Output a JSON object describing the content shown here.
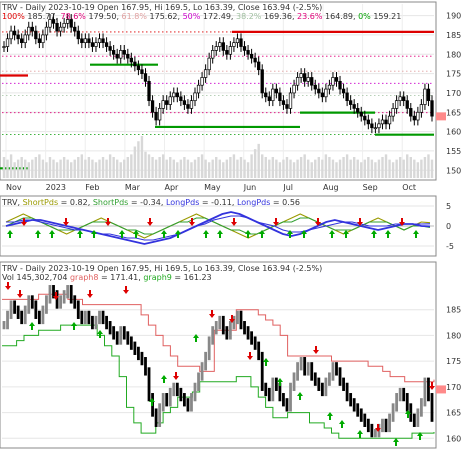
{
  "colors": {
    "up": "#000000",
    "down": "#000000",
    "fib_red": "#e0007a",
    "fib_green": "#00a000",
    "fib_level_line_red": "#dd0000",
    "fib_level_line_green": "#009900",
    "short_pds": "#9a9a00",
    "long_pds": "#3333dd",
    "short_pds2": "#33a033",
    "graph8": "#e06060",
    "graph9": "#22aa22",
    "arrow_up": "#00aa00",
    "arrow_down": "#dd0000",
    "pill": "#ff8a8a"
  },
  "header": {
    "ticker": "TRV",
    "line1": "TRV - Daily 2023-10-19 Open 167.95, Hi 169.5, Lo 163.39, Close 163.94 (-2.5%)",
    "fib_items": [
      {
        "pct": "100%",
        "val": "185.77",
        "color": "#e00000"
      },
      {
        "pct": "78.6%",
        "val": "179.50",
        "color": "#e0007a"
      },
      {
        "pct": "61.8%",
        "val": "175.62",
        "color": "#e0a0a0"
      },
      {
        "pct": "50%",
        "val": "172.49",
        "color": "#cc00cc"
      },
      {
        "pct": "38.2%",
        "val": "169.36",
        "color": "#a0c0a0"
      },
      {
        "pct": "23.6%",
        "val": "164.89",
        "color": "#e0007a"
      },
      {
        "pct": "0%",
        "val": "159.21",
        "color": "#00a000"
      }
    ]
  },
  "indicator": {
    "parts": [
      {
        "text": "TRV, ",
        "color": "#333333"
      },
      {
        "text": "ShortPds",
        "color": "#9a9a00"
      },
      {
        "text": " = 0.82, ",
        "color": "#333333"
      },
      {
        "text": "ShortPds",
        "color": "#33a033"
      },
      {
        "text": " = -0.34, ",
        "color": "#333333"
      },
      {
        "text": "LongPds",
        "color": "#3333dd"
      },
      {
        "text": " = -0.11, ",
        "color": "#333333"
      },
      {
        "text": "LongPds",
        "color": "#3333dd"
      },
      {
        "text": " = 0.56",
        "color": "#333333"
      }
    ]
  },
  "lower": {
    "line1": "TRV - Daily 2023-10-19 Open 167.95, Hi 169.5, Lo 163.39, Close 163.94 (-2.5%)",
    "vol_parts": [
      {
        "text": "Vol 145,302,704 ",
        "color": "#333333"
      },
      {
        "text": "graph8",
        "color": "#e06060"
      },
      {
        "text": " = 171.41, ",
        "color": "#333333"
      },
      {
        "text": "graph9",
        "color": "#22aa22"
      },
      {
        "text": " = 161.23",
        "color": "#333333"
      }
    ]
  },
  "chart_data": [
    {
      "type": "bar",
      "title": "TRV - Daily 2023-10-19 Open 167.95, Hi 169.5, Lo 163.39, Close 163.94 (-2.5%)",
      "x_labels": [
        "Nov",
        "2023",
        "Feb",
        "Mar",
        "Apr",
        "May",
        "Jun",
        "Jul",
        "Aug",
        "Sep",
        "Oct"
      ],
      "y_ticks": [
        150,
        155,
        160,
        165,
        170,
        175,
        180,
        185,
        190
      ],
      "ylim": [
        148,
        193
      ],
      "fib_levels": [
        {
          "label": "100%",
          "value": 185.77
        },
        {
          "label": "78.6%",
          "value": 179.5
        },
        {
          "label": "61.8%",
          "value": 175.62
        },
        {
          "label": "50%",
          "value": 172.49
        },
        {
          "label": "38.2%",
          "value": 169.36
        },
        {
          "label": "23.6%",
          "value": 164.89
        },
        {
          "label": "0%",
          "value": 159.21
        }
      ],
      "close_series": [
        182,
        184,
        186,
        185,
        184,
        183,
        185,
        187,
        186,
        184,
        183,
        185,
        187,
        189,
        188,
        186,
        187,
        188,
        189,
        187,
        186,
        184,
        183,
        184,
        183,
        182,
        183,
        184,
        183,
        182,
        181,
        180,
        179,
        181,
        180,
        179,
        178,
        177,
        176,
        175,
        173,
        168,
        165,
        163,
        166,
        168,
        167,
        169,
        170,
        169,
        168,
        167,
        166,
        168,
        170,
        172,
        174,
        176,
        179,
        181,
        182,
        183,
        181,
        180,
        182,
        183,
        184,
        182,
        181,
        180,
        179,
        178,
        176,
        170,
        169,
        168,
        171,
        170,
        168,
        167,
        166,
        170,
        172,
        174,
        175,
        173,
        174,
        172,
        171,
        170,
        169,
        171,
        172,
        174,
        173,
        171,
        170,
        168,
        167,
        166,
        165,
        164,
        163,
        162,
        161,
        161,
        162,
        163,
        162,
        164,
        166,
        168,
        169,
        168,
        166,
        164,
        163,
        165,
        167,
        171,
        168,
        164
      ],
      "volume_series": [
        8,
        7,
        9,
        6,
        7,
        8,
        7,
        6,
        7,
        8,
        9,
        7,
        6,
        8,
        7,
        6,
        7,
        8,
        7,
        6,
        7,
        8,
        9,
        7,
        8,
        7,
        6,
        7,
        8,
        7,
        9,
        8,
        7,
        6,
        7,
        8,
        9,
        12,
        14,
        16,
        10,
        9,
        8,
        7,
        8,
        9,
        7,
        8,
        7,
        6,
        7,
        8,
        7,
        6,
        7,
        8,
        9,
        7,
        6,
        7,
        8,
        7,
        6,
        7,
        8,
        9,
        7,
        8,
        7,
        6,
        9,
        11,
        13,
        9,
        8,
        7,
        8,
        7,
        6,
        7,
        8,
        7,
        6,
        7,
        8,
        9,
        7,
        6,
        7,
        8,
        7,
        9,
        8,
        7,
        6,
        7,
        8,
        9,
        7,
        8,
        7,
        6,
        7,
        8,
        7,
        6,
        7,
        8,
        9,
        7,
        6,
        7,
        8,
        7,
        9,
        8,
        7,
        6,
        7,
        8,
        9,
        7
      ]
    },
    {
      "type": "line",
      "title": "TRV, ShortPds = 0.82, ShortPds = -0.34, LongPds = -0.11, LongPds = 0.56",
      "y_ticks": [
        5,
        0,
        -5
      ],
      "ylim": [
        -7,
        7
      ],
      "series": [
        {
          "name": "ShortPds",
          "values": [
            1,
            2,
            3,
            2,
            1,
            0,
            -1,
            -2,
            -1,
            0,
            1,
            2,
            1,
            0,
            -1,
            -2,
            -3,
            -2,
            -1,
            0,
            1,
            2,
            3,
            2,
            1,
            0,
            -1,
            -2,
            -3,
            -2,
            -1,
            0,
            1,
            2,
            3,
            2,
            1,
            0,
            -1,
            -2,
            -1,
            0,
            1,
            2,
            1,
            0,
            -1,
            0,
            1,
            0.82
          ]
        },
        {
          "name": "ShortPds",
          "values": [
            0,
            1,
            2,
            2,
            1,
            0,
            -1,
            -1,
            -1,
            0,
            1,
            1,
            1,
            0,
            -1,
            -1,
            -2,
            -2,
            -1,
            0,
            1,
            1,
            2,
            2,
            1,
            0,
            -1,
            -1,
            -2,
            -2,
            -1,
            0,
            1,
            1,
            2,
            2,
            1,
            0,
            -1,
            -1,
            -1,
            0,
            1,
            1,
            1,
            0,
            -1,
            0,
            0,
            -0.34
          ]
        },
        {
          "name": "LongPds",
          "values": [
            0,
            0.5,
            1,
            1.5,
            1.5,
            1,
            0.5,
            0,
            -0.5,
            -1,
            -1.5,
            -2,
            -2.5,
            -3,
            -3.5,
            -4,
            -4.5,
            -4,
            -3.5,
            -3,
            -2,
            -1,
            0,
            1,
            2,
            3,
            3.5,
            3,
            2,
            1,
            0,
            -1,
            -2,
            -2.5,
            -2,
            -1,
            0,
            1,
            1.5,
            1,
            0.5,
            0,
            -0.5,
            -1,
            -0.5,
            0,
            0.5,
            0.5,
            0,
            -0.11
          ]
        },
        {
          "name": "LongPds",
          "values": [
            1,
            1,
            1.5,
            1.5,
            1,
            0.5,
            0,
            -0.5,
            -1,
            -1,
            -1.5,
            -2,
            -2,
            -2.5,
            -3,
            -3,
            -3.5,
            -3.5,
            -3,
            -2.5,
            -2,
            -1,
            0,
            0.5,
            1.5,
            2,
            2.5,
            2.5,
            2,
            1,
            0.5,
            0,
            -1,
            -1.5,
            -1.5,
            -1,
            -0.5,
            0,
            0.5,
            1,
            1,
            0.5,
            0,
            0,
            0,
            0.5,
            0.5,
            0.5,
            0.5,
            0.56
          ]
        }
      ]
    },
    {
      "type": "line",
      "title": "TRV - Daily 2023-10-19 Open 167.95, Hi 169.5, Lo 163.39, Close 163.94 (-2.5%)",
      "y_ticks": [
        160,
        165,
        170,
        175,
        180,
        185
      ],
      "ylim": [
        158.5,
        190
      ],
      "series": [
        {
          "name": "graph8",
          "values": [
            187,
            187,
            187,
            187,
            187,
            188,
            188,
            188,
            188,
            187,
            187,
            186,
            186,
            186,
            186,
            186,
            186,
            186,
            186,
            184,
            182,
            180,
            178,
            176,
            174,
            174,
            174,
            173,
            173,
            181,
            181,
            181,
            185,
            185,
            185,
            184,
            183,
            182,
            180,
            176,
            176,
            176,
            176,
            176,
            176,
            175,
            175,
            175,
            175,
            175,
            174,
            174,
            173,
            172,
            172,
            171,
            171,
            171,
            171,
            171.41
          ]
        },
        {
          "name": "graph9",
          "values": [
            178,
            178,
            179,
            180,
            180,
            181,
            181,
            181,
            182,
            182,
            182,
            182,
            182,
            180,
            178,
            176,
            172,
            166,
            163,
            161,
            161,
            163,
            165,
            166,
            168,
            168,
            169,
            171,
            171,
            171,
            171,
            171,
            172,
            172,
            170,
            168,
            166,
            164,
            164,
            165,
            165,
            165,
            163,
            163,
            162,
            161,
            160,
            160,
            160,
            160,
            160,
            160,
            160,
            160,
            160,
            160,
            161,
            161,
            161,
            161.23
          ]
        }
      ]
    }
  ]
}
